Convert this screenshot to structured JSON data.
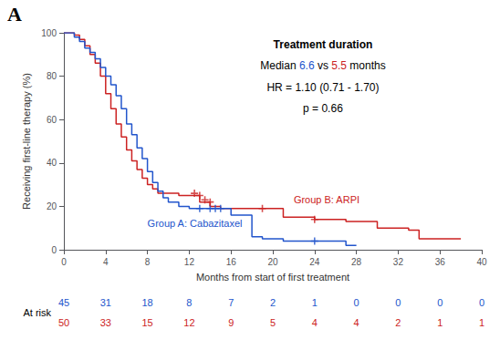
{
  "chart_data": {
    "type": "step",
    "panel_label": "A",
    "xlabel": "Months from start of first treatment",
    "ylabel": "Receiving first-line therapy (%)",
    "xlim": [
      0,
      40
    ],
    "ylim": [
      0,
      100
    ],
    "xticks": [
      0,
      4,
      8,
      12,
      16,
      20,
      24,
      28,
      32,
      36,
      40
    ],
    "yticks": [
      0,
      20,
      40,
      60,
      80,
      100
    ],
    "grid": false,
    "series": [
      {
        "name": "Group A: Cabazitaxel",
        "type": "step",
        "color": "#2255cc",
        "label_at": [
          8,
          12
        ],
        "x": [
          0,
          0.5,
          1,
          1.5,
          2,
          2.5,
          3,
          3.5,
          4,
          4.5,
          5,
          5.5,
          6,
          6.5,
          7,
          7.5,
          8,
          8.5,
          9,
          9.5,
          10,
          11,
          12,
          13,
          14,
          15,
          16,
          17,
          18,
          19,
          20,
          21,
          22,
          23,
          24,
          25,
          26,
          27,
          28
        ],
        "values": [
          100,
          100,
          98,
          96,
          93,
          91,
          88,
          84,
          80,
          76,
          71,
          65,
          58,
          53,
          47,
          42,
          36,
          31,
          27,
          24,
          22,
          20,
          19,
          19,
          19,
          19,
          16,
          16,
          6,
          5,
          5,
          4,
          4,
          4,
          4,
          4,
          4,
          2,
          2
        ]
      },
      {
        "name": "Group B: ARPI",
        "type": "step",
        "color": "#cc2222",
        "label_at": [
          22,
          23
        ],
        "x": [
          0,
          0.5,
          1,
          1.5,
          2,
          2.5,
          3,
          3.5,
          4,
          4.5,
          5,
          5.5,
          6,
          6.5,
          7,
          7.5,
          8,
          8.5,
          9,
          10,
          11,
          12,
          13,
          14,
          15,
          16,
          17,
          18,
          19,
          20,
          21,
          22,
          23,
          24,
          25,
          26,
          27,
          28,
          29,
          30,
          31,
          32,
          33,
          34,
          35,
          36,
          37,
          38
        ],
        "values": [
          100,
          100,
          99,
          97,
          94,
          90,
          86,
          80,
          72,
          65,
          58,
          52,
          46,
          41,
          37,
          33,
          30,
          28,
          26,
          26,
          25,
          25,
          22,
          20,
          19,
          19,
          19,
          19,
          19,
          19,
          15,
          15,
          15,
          14,
          14,
          14,
          13,
          13,
          13,
          10,
          10,
          10,
          9,
          5,
          5,
          5,
          5,
          5
        ]
      },
      {
        "type": "scatter",
        "marker": "+",
        "color": "#2255cc",
        "x": [
          13,
          14,
          14.5,
          15,
          24
        ],
        "values": [
          19,
          19,
          19,
          19,
          4
        ]
      },
      {
        "type": "scatter",
        "marker": "+",
        "color": "#cc2222",
        "x": [
          12.5,
          13,
          13.5,
          14,
          19,
          24
        ],
        "values": [
          26,
          25,
          23,
          22,
          19,
          14
        ]
      }
    ],
    "annotation_box": {
      "title": "Treatment duration",
      "median": [
        {
          "text": "Median ",
          "color": "#000000"
        },
        {
          "text": "6.6",
          "color": "#2255cc"
        },
        {
          "text": " vs ",
          "color": "#000000"
        },
        {
          "text": "5.5",
          "color": "#cc2222"
        },
        {
          "text": " months",
          "color": "#000000"
        }
      ],
      "lines": [
        "HR = 1.10 (0.71 - 1.70)",
        "p = 0.66"
      ]
    },
    "at_risk": {
      "label": "At risk",
      "rows": [
        {
          "color": "#2255cc",
          "values": [
            45,
            31,
            18,
            8,
            7,
            2,
            1,
            0,
            0,
            0,
            0
          ]
        },
        {
          "color": "#cc2222",
          "values": [
            50,
            33,
            15,
            12,
            9,
            5,
            4,
            4,
            2,
            1,
            1
          ]
        }
      ]
    }
  }
}
